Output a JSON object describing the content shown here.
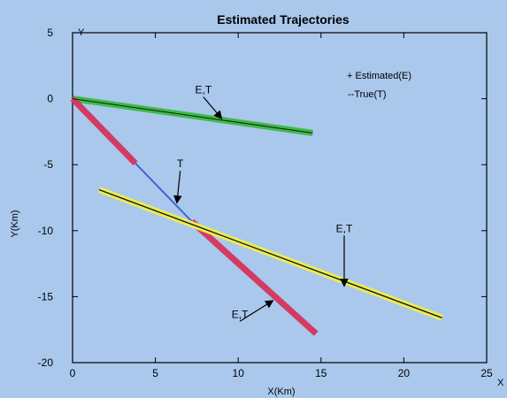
{
  "chart_data": {
    "type": "line",
    "title": "Estimated Trajectories",
    "xlabel": "X(Km)",
    "ylabel": "Y(Km)",
    "xlim": [
      0,
      25
    ],
    "ylim": [
      -20,
      5
    ],
    "xticks": [
      "0",
      "5",
      "10",
      "15",
      "20",
      "25"
    ],
    "yticks": [
      "5",
      "0",
      "-5",
      "-10",
      "-15",
      "-20"
    ],
    "axis_corner_y": "Y",
    "axis_corner_x": "X",
    "grid": false,
    "legend_position": "top-right",
    "legend": [
      "+ Estimated(E)",
      "--True(T)"
    ],
    "colors": {
      "background": "#a9c8ec",
      "green": "#3dbb45",
      "red": "#d43a63",
      "blue": "#4661d8",
      "yellow": "#ecec55",
      "true_line": "#1a1a1a"
    },
    "series": [
      {
        "id": "green-est",
        "color": "#3dbb45",
        "width": 7,
        "x": [
          0,
          14.5
        ],
        "y": [
          0,
          -2.6
        ]
      },
      {
        "id": "red-est-a",
        "color": "#d43a63",
        "width": 7,
        "x": [
          0,
          3.8
        ],
        "y": [
          0,
          -4.9
        ]
      },
      {
        "id": "true-blue",
        "color": "#4661d8",
        "width": 2,
        "x": [
          3.8,
          7.2
        ],
        "y": [
          -4.9,
          -9.3
        ]
      },
      {
        "id": "red-est-b",
        "color": "#d43a63",
        "width": 7,
        "x": [
          7.2,
          14.7
        ],
        "y": [
          -9.3,
          -17.8
        ]
      },
      {
        "id": "yellow-est",
        "color": "#ecec55",
        "width": 7,
        "x": [
          1.6,
          22.3
        ],
        "y": [
          -6.9,
          -16.6
        ]
      },
      {
        "id": "yellow-true",
        "color": "#1a1a1a",
        "width": 1.4,
        "x": [
          1.6,
          22.3
        ],
        "y": [
          -6.9,
          -16.6
        ]
      },
      {
        "id": "green-true",
        "color": "#1a1a1a",
        "width": 1,
        "x": [
          0,
          14.5
        ],
        "y": [
          0,
          -2.6
        ]
      }
    ],
    "annotations": [
      {
        "label": "E,T",
        "x": 7.9,
        "y": 0.4,
        "arrow_to": [
          9.0,
          -1.5
        ]
      },
      {
        "label": "T",
        "x": 6.5,
        "y": -5.2,
        "arrow_to": [
          6.3,
          -7.9
        ]
      },
      {
        "label": "E,T",
        "x": 16.4,
        "y": -10.1,
        "arrow_to": [
          16.4,
          -14.2
        ]
      },
      {
        "label": "E,T",
        "x": 10.1,
        "y": -16.6,
        "arrow_to": [
          12.1,
          -15.3
        ]
      }
    ]
  }
}
